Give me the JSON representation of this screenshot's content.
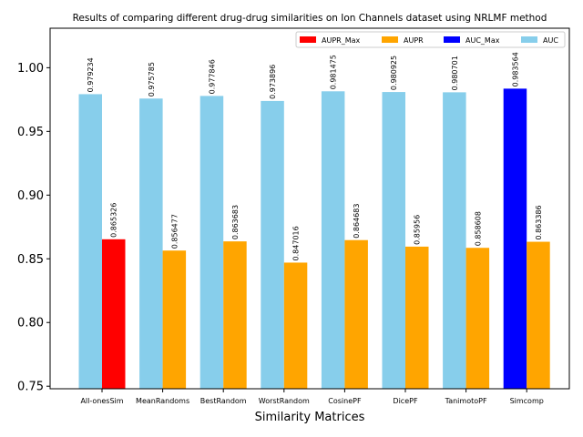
{
  "chart_data": {
    "type": "bar",
    "title": "Results of comparing different drug-drug similarities on Ion Channels dataset using NRLMF method",
    "xlabel": "Similarity Matrices",
    "ylabel": "",
    "ylim": [
      0.748,
      1.031
    ],
    "yticks": [
      "0.75",
      "0.80",
      "0.85",
      "0.90",
      "0.95",
      "1.00"
    ],
    "categories": [
      "All-onesSim",
      "MeanRandoms",
      "BestRandom",
      "WorstRandom",
      "CosinePF",
      "DicePF",
      "TanimotoPF",
      "Simcomp"
    ],
    "series": [
      {
        "name": "AUC",
        "values": [
          0.979234,
          0.975785,
          0.977846,
          0.973896,
          0.981475,
          0.980925,
          0.980701,
          0.983564
        ],
        "labels": [
          "0.979234",
          "0.975785",
          "0.977846",
          "0.973896",
          "0.981475",
          "0.980925",
          "0.980701",
          "0.983564"
        ]
      },
      {
        "name": "AUPR",
        "values": [
          0.865326,
          0.856477,
          0.863683,
          0.847016,
          0.864683,
          0.85956,
          0.858608,
          0.863386
        ],
        "labels": [
          "0.865326",
          "0.856477",
          "0.863683",
          "0.847016",
          "0.864683",
          "0.85956",
          "0.858608",
          "0.863386"
        ]
      }
    ],
    "highlight": {
      "auc_max_index": 7,
      "aupr_max_index": 0
    },
    "legend": {
      "placement": "top-right",
      "entries": [
        {
          "label": "AUPR_Max",
          "color": "#ff0000"
        },
        {
          "label": "AUPR",
          "color": "#ffa500"
        },
        {
          "label": "AUC_Max",
          "color": "#0000ff"
        },
        {
          "label": "AUC",
          "color": "#87ceeb"
        }
      ]
    },
    "colors": {
      "auc": "#87ceeb",
      "aupr": "#ffa500",
      "auc_max": "#0000ff",
      "aupr_max": "#ff0000"
    },
    "grid": false
  }
}
